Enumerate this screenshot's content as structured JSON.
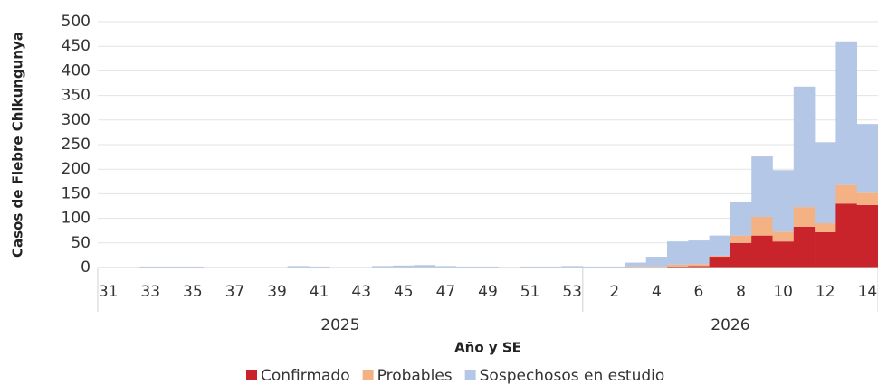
{
  "chart_data": {
    "type": "stacked_bar",
    "y_label": "Casos de Fiebre Chikungunya",
    "x_label": "Año y SE",
    "groups": [
      {
        "label": "2025",
        "categories": [
          "31",
          null,
          "33",
          null,
          "35",
          null,
          "37",
          null,
          "39",
          null,
          "41",
          null,
          "43",
          null,
          "45",
          null,
          "47",
          null,
          "49",
          null,
          "51",
          null,
          "53"
        ]
      },
      {
        "label": "2026",
        "categories": [
          null,
          "2",
          null,
          "4",
          null,
          "6",
          null,
          "8",
          null,
          "10",
          null,
          "12",
          null,
          "14"
        ]
      }
    ],
    "series": [
      {
        "name": "Confirmado",
        "color": "#c9242b",
        "values": [
          0,
          0,
          0,
          0,
          0,
          0,
          0,
          0,
          0,
          0,
          0,
          0,
          0,
          0,
          0,
          0,
          0,
          0,
          0,
          0,
          0,
          0,
          0,
          0,
          0,
          0,
          0,
          2,
          3,
          22,
          50,
          65,
          53,
          83,
          72,
          130,
          127
        ]
      },
      {
        "name": "Probables",
        "color": "#f4b183",
        "values": [
          0,
          0,
          0,
          0,
          0,
          0,
          0,
          0,
          0,
          0,
          0,
          0,
          0,
          0,
          0,
          0,
          0,
          0,
          0,
          0,
          0,
          0,
          0,
          0,
          0,
          2,
          2,
          4,
          4,
          2,
          15,
          38,
          20,
          40,
          18,
          38,
          25
        ]
      },
      {
        "name": "Sospechosos en estudio",
        "color": "#b4c7e7",
        "values": [
          0,
          0,
          2,
          2,
          2,
          0,
          0,
          0,
          0,
          3,
          2,
          0,
          0,
          3,
          4,
          5,
          3,
          2,
          2,
          1,
          2,
          2,
          3,
          2,
          2,
          8,
          20,
          47,
          48,
          41,
          68,
          123,
          125,
          245,
          165,
          292,
          140
        ]
      }
    ],
    "ylim": [
      0,
      500
    ],
    "yticks": [
      0,
      50,
      100,
      150,
      200,
      250,
      300,
      350,
      400,
      450,
      500
    ],
    "grid": true,
    "legend": "bottom"
  }
}
